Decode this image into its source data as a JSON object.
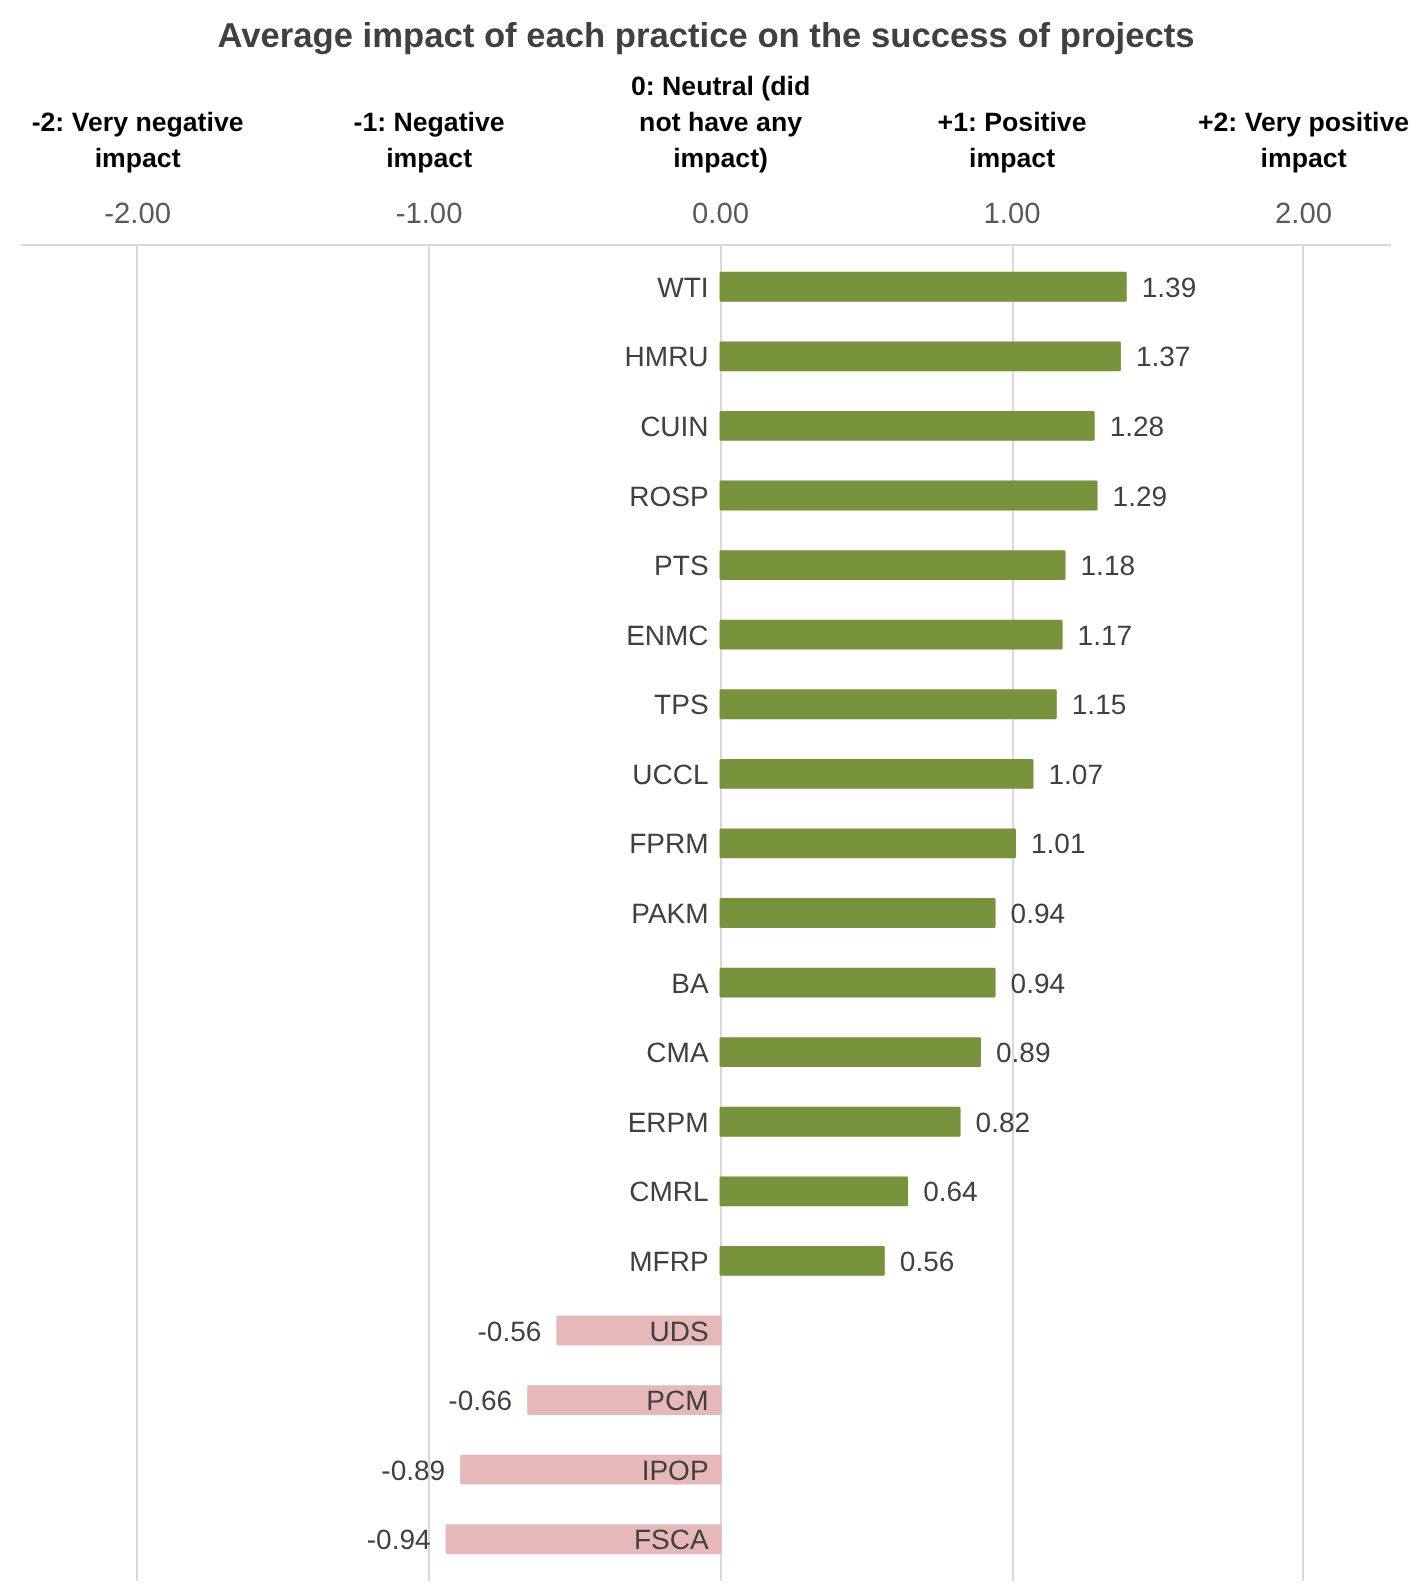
{
  "chart_data": {
    "type": "bar",
    "orientation": "horizontal",
    "title": "Average impact of each practice on the success of projects",
    "categories": [
      "WTI",
      "HMRU",
      "CUIN",
      "ROSP",
      "PTS",
      "ENMC",
      "TPS",
      "UCCL",
      "FPRM",
      "PAKM",
      "BA",
      "CMA",
      "ERPM",
      "CMRL",
      "MFRP",
      "UDS",
      "PCM",
      "IPOP",
      "FSCA"
    ],
    "values": [
      1.39,
      1.37,
      1.28,
      1.29,
      1.18,
      1.17,
      1.15,
      1.07,
      1.01,
      0.94,
      0.94,
      0.89,
      0.82,
      0.64,
      0.56,
      -0.56,
      -0.66,
      -0.89,
      -0.94
    ],
    "colors": [
      "#77933c",
      "#77933c",
      "#77933c",
      "#77933c",
      "#77933c",
      "#77933c",
      "#77933c",
      "#77933c",
      "#77933c",
      "#77933c",
      "#77933c",
      "#77933c",
      "#77933c",
      "#77933c",
      "#77933c",
      "#e6b9b8",
      "#e6b9b8",
      "#e6b9b8",
      "#e6b9b8"
    ],
    "xticks": [
      {
        "value": -2,
        "label": "-2.00"
      },
      {
        "value": -1,
        "label": "-1.00"
      },
      {
        "value": 0,
        "label": "0.00"
      },
      {
        "value": 1,
        "label": "1.00"
      },
      {
        "value": 2,
        "label": "2.00"
      }
    ],
    "xlim": [
      -2.4,
      2.3
    ],
    "x2lim": [
      -2.4,
      2.3
    ],
    "x2ticks": [
      {
        "value": -2,
        "label": "-2: Very negative impact"
      },
      {
        "value": -1,
        "label": "-1: Negative impact"
      },
      {
        "value": 0,
        "label": "0: Neutral (did not have any impact)"
      },
      {
        "value": 1,
        "label": "+1: Positive impact"
      },
      {
        "value": 2,
        "label": "+2: Very positive impact"
      }
    ],
    "grid": "x",
    "data_labels": true
  }
}
